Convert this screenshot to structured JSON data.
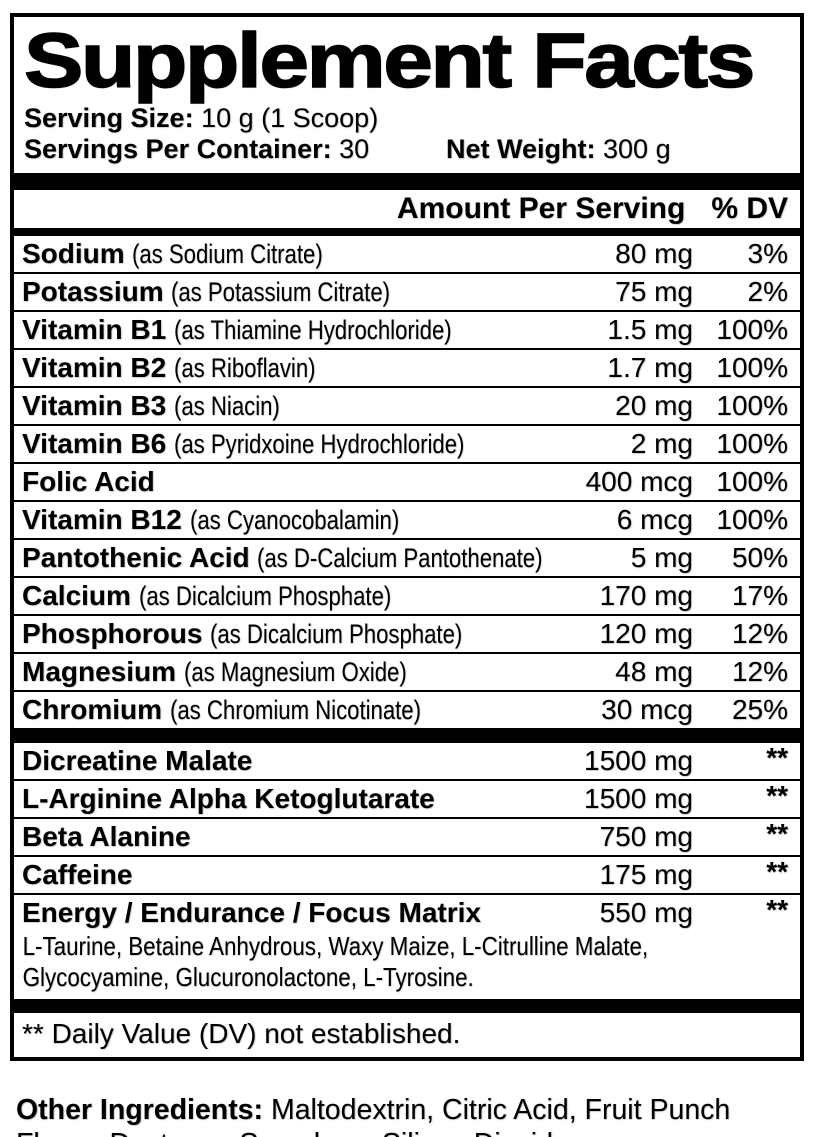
{
  "label": {
    "title": "Supplement Facts",
    "serving": {
      "size_label": "Serving Size:",
      "size_value": "10 g (1 Scoop)",
      "per_container_label": "Servings Per Container:",
      "per_container_value": "30",
      "net_weight_label": "Net Weight:",
      "net_weight_value": "300 g"
    },
    "columns": {
      "amount_header": "Amount Per Serving",
      "dv_header": "% DV"
    },
    "nutrients": [
      {
        "name": "Sodium",
        "detail": "(as Sodium Citrate)",
        "amount": "80 mg",
        "dv": "3%"
      },
      {
        "name": "Potassium",
        "detail": "(as Potassium Citrate)",
        "amount": "75 mg",
        "dv": "2%"
      },
      {
        "name": "Vitamin B1",
        "detail": "(as Thiamine Hydrochloride)",
        "amount": "1.5 mg",
        "dv": "100%"
      },
      {
        "name": "Vitamin B2",
        "detail": "(as Riboflavin)",
        "amount": "1.7 mg",
        "dv": "100%"
      },
      {
        "name": "Vitamin B3",
        "detail": "(as Niacin)",
        "amount": "20 mg",
        "dv": "100%"
      },
      {
        "name": "Vitamin B6",
        "detail": "(as Pyridxoine Hydrochloride)",
        "amount": "2 mg",
        "dv": "100%"
      },
      {
        "name": "Folic Acid",
        "detail": "",
        "amount": "400 mcg",
        "dv": "100%"
      },
      {
        "name": "Vitamin B12",
        "detail": "(as Cyanocobalamin)",
        "amount": "6 mcg",
        "dv": "100%"
      },
      {
        "name": "Pantothenic Acid",
        "detail": "(as D-Calcium Pantothenate)",
        "amount": "5 mg",
        "dv": "50%"
      },
      {
        "name": "Calcium",
        "detail": "(as Dicalcium Phosphate)",
        "amount": "170 mg",
        "dv": "17%"
      },
      {
        "name": "Phosphorous",
        "detail": "(as Dicalcium Phosphate)",
        "amount": "120 mg",
        "dv": "12%"
      },
      {
        "name": "Magnesium",
        "detail": "(as Magnesium Oxide)",
        "amount": "48 mg",
        "dv": "12%"
      },
      {
        "name": "Chromium",
        "detail": "(as Chromium Nicotinate)",
        "amount": "30 mcg",
        "dv": "25%"
      }
    ],
    "blend_rows": [
      {
        "name": "Dicreatine Malate",
        "amount": "1500 mg",
        "dv": "**"
      },
      {
        "name": "L-Arginine Alpha Ketoglutarate",
        "amount": "1500 mg",
        "dv": "**"
      },
      {
        "name": "Beta Alanine",
        "amount": "750 mg",
        "dv": "**"
      },
      {
        "name": "Caffeine",
        "amount": "175 mg",
        "dv": "**"
      },
      {
        "name": "Energy / Endurance / Focus Matrix",
        "amount": "550 mg",
        "dv": "**",
        "sub_ingredients": [
          "L-Taurine, Betaine Anhydrous, Waxy Maize, L-Citrulline Malate,",
          "Glycocyamine, Glucuronolactone, L-Tyrosine."
        ]
      }
    ],
    "footnote": "** Daily Value (DV) not established.",
    "other_ingredients": {
      "label": "Other Ingredients:",
      "value": "Maltodextrin, Citric Acid, Fruit Punch Flavor, Dextrose, Sucralose, Silicon Dioxide."
    },
    "colors": {
      "text": "#000000",
      "background": "#ffffff"
    }
  }
}
